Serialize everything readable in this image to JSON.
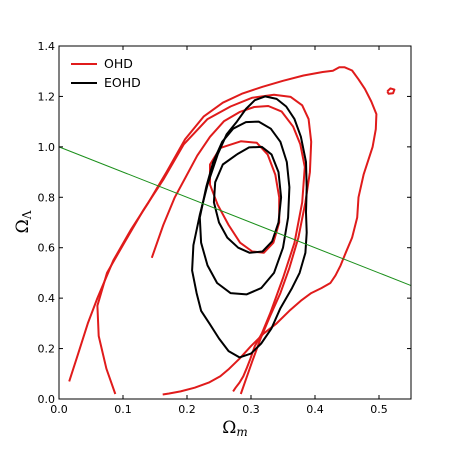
{
  "chart_data": {
    "type": "contour",
    "xlabel": "Ω_m",
    "ylabel": "Ω_Λ",
    "xlim": [
      0.0,
      0.55
    ],
    "ylim": [
      0.0,
      1.4
    ],
    "x_ticks": [
      "0.0",
      "0.1",
      "0.2",
      "0.3",
      "0.4",
      "0.5"
    ],
    "y_ticks": [
      "0.0",
      "0.2",
      "0.4",
      "0.6",
      "0.8",
      "1.0",
      "1.2",
      "1.4"
    ],
    "legend_position": "top-left",
    "grid": false,
    "series": [
      {
        "name": "OHD",
        "color": "#e01b1b",
        "contours": [
          [
            [
              0.252,
              0.996
            ],
            [
              0.284,
              1.022
            ],
            [
              0.309,
              1.016
            ],
            [
              0.326,
              0.97
            ],
            [
              0.338,
              0.89
            ],
            [
              0.344,
              0.8
            ],
            [
              0.344,
              0.7
            ],
            [
              0.335,
              0.62
            ],
            [
              0.32,
              0.58
            ],
            [
              0.302,
              0.585
            ],
            [
              0.283,
              0.62
            ],
            [
              0.265,
              0.69
            ],
            [
              0.248,
              0.77
            ],
            [
              0.236,
              0.85
            ],
            [
              0.236,
              0.93
            ],
            [
              0.252,
              0.996
            ]
          ],
          [
            [
              0.145,
              0.56
            ],
            [
              0.163,
              0.69
            ],
            [
              0.181,
              0.8
            ],
            [
              0.198,
              0.88
            ],
            [
              0.216,
              0.965
            ],
            [
              0.236,
              1.04
            ],
            [
              0.258,
              1.102
            ],
            [
              0.282,
              1.138
            ],
            [
              0.305,
              1.158
            ],
            [
              0.327,
              1.162
            ],
            [
              0.348,
              1.14
            ],
            [
              0.366,
              1.08
            ],
            [
              0.377,
              1.01
            ],
            [
              0.384,
              0.92
            ],
            [
              0.38,
              0.78
            ],
            [
              0.368,
              0.62
            ],
            [
              0.35,
              0.48
            ],
            [
              0.33,
              0.34
            ],
            [
              0.317,
              0.26
            ],
            [
              0.306,
              0.21
            ],
            [
              0.299,
              0.16
            ],
            [
              0.293,
              0.12
            ],
            [
              0.288,
              0.09
            ],
            [
              0.282,
              0.065
            ],
            [
              0.276,
              0.045
            ],
            [
              0.272,
              0.03
            ]
          ],
          [
            [
              0.016,
              0.07
            ],
            [
              0.03,
              0.18
            ],
            [
              0.045,
              0.3
            ],
            [
              0.06,
              0.4
            ],
            [
              0.085,
              0.55
            ],
            [
              0.112,
              0.67
            ],
            [
              0.14,
              0.78
            ],
            [
              0.168,
              0.9
            ],
            [
              0.197,
              1.03
            ],
            [
              0.226,
              1.12
            ],
            [
              0.256,
              1.175
            ],
            [
              0.287,
              1.212
            ],
            [
              0.318,
              1.238
            ],
            [
              0.35,
              1.262
            ],
            [
              0.382,
              1.283
            ],
            [
              0.412,
              1.297
            ],
            [
              0.428,
              1.302
            ],
            [
              0.438,
              1.316
            ],
            [
              0.446,
              1.316
            ],
            [
              0.458,
              1.303
            ],
            [
              0.468,
              1.268
            ],
            [
              0.478,
              1.23
            ],
            [
              0.488,
              1.18
            ],
            [
              0.496,
              1.13
            ],
            [
              0.495,
              1.07
            ],
            [
              0.49,
              1.0
            ],
            [
              0.476,
              0.89
            ],
            [
              0.468,
              0.8
            ],
            [
              0.466,
              0.72
            ],
            [
              0.458,
              0.64
            ],
            [
              0.448,
              0.58
            ],
            [
              0.44,
              0.53
            ],
            [
              0.432,
              0.49
            ],
            [
              0.424,
              0.46
            ],
            [
              0.41,
              0.44
            ],
            [
              0.394,
              0.42
            ],
            [
              0.378,
              0.39
            ],
            [
              0.36,
              0.35
            ],
            [
              0.34,
              0.3
            ],
            [
              0.32,
              0.26
            ],
            [
              0.3,
              0.21
            ],
            [
              0.282,
              0.16
            ],
            [
              0.266,
              0.12
            ],
            [
              0.252,
              0.09
            ],
            [
              0.234,
              0.065
            ],
            [
              0.212,
              0.045
            ],
            [
              0.19,
              0.03
            ],
            [
              0.172,
              0.022
            ],
            [
              0.162,
              0.018
            ]
          ],
          [
            [
              0.088,
              0.02
            ],
            [
              0.074,
              0.12
            ],
            [
              0.062,
              0.25
            ],
            [
              0.06,
              0.37
            ],
            [
              0.075,
              0.5
            ],
            [
              0.102,
              0.62
            ],
            [
              0.132,
              0.75
            ],
            [
              0.163,
              0.87
            ],
            [
              0.195,
              1.01
            ],
            [
              0.232,
              1.11
            ],
            [
              0.268,
              1.16
            ],
            [
              0.302,
              1.195
            ],
            [
              0.336,
              1.207
            ],
            [
              0.362,
              1.198
            ],
            [
              0.38,
              1.165
            ],
            [
              0.39,
              1.11
            ],
            [
              0.394,
              1.02
            ],
            [
              0.392,
              0.9
            ],
            [
              0.385,
              0.78
            ],
            [
              0.374,
              0.64
            ],
            [
              0.36,
              0.52
            ],
            [
              0.346,
              0.42
            ],
            [
              0.33,
              0.33
            ],
            [
              0.315,
              0.24
            ],
            [
              0.302,
              0.15
            ],
            [
              0.291,
              0.07
            ],
            [
              0.284,
              0.02
            ]
          ],
          [
            [
              0.513,
              1.22
            ],
            [
              0.518,
              1.232
            ],
            [
              0.524,
              1.227
            ],
            [
              0.522,
              1.213
            ],
            [
              0.515,
              1.211
            ],
            [
              0.513,
              1.22
            ]
          ]
        ]
      },
      {
        "name": "EOHD",
        "color": "#000000",
        "contours": [
          [
            [
              0.278,
              0.97
            ],
            [
              0.297,
              0.998
            ],
            [
              0.317,
              1.0
            ],
            [
              0.332,
              0.97
            ],
            [
              0.343,
              0.9
            ],
            [
              0.347,
              0.8
            ],
            [
              0.343,
              0.7
            ],
            [
              0.333,
              0.625
            ],
            [
              0.318,
              0.585
            ],
            [
              0.298,
              0.58
            ],
            [
              0.28,
              0.6
            ],
            [
              0.263,
              0.64
            ],
            [
              0.25,
              0.7
            ],
            [
              0.242,
              0.78
            ],
            [
              0.244,
              0.86
            ],
            [
              0.256,
              0.93
            ],
            [
              0.278,
              0.97
            ]
          ],
          [
            [
              0.23,
              0.84
            ],
            [
              0.241,
              0.94
            ],
            [
              0.255,
              1.02
            ],
            [
              0.272,
              1.072
            ],
            [
              0.292,
              1.098
            ],
            [
              0.312,
              1.1
            ],
            [
              0.331,
              1.072
            ],
            [
              0.346,
              1.02
            ],
            [
              0.356,
              0.94
            ],
            [
              0.36,
              0.84
            ],
            [
              0.358,
              0.72
            ],
            [
              0.35,
              0.6
            ],
            [
              0.336,
              0.5
            ],
            [
              0.316,
              0.44
            ],
            [
              0.293,
              0.415
            ],
            [
              0.268,
              0.42
            ],
            [
              0.247,
              0.46
            ],
            [
              0.232,
              0.53
            ],
            [
              0.222,
              0.62
            ],
            [
              0.22,
              0.72
            ],
            [
              0.23,
              0.84
            ]
          ],
          [
            [
              0.232,
              0.85
            ],
            [
              0.22,
              0.73
            ],
            [
              0.21,
              0.61
            ],
            [
              0.208,
              0.51
            ],
            [
              0.215,
              0.42
            ],
            [
              0.222,
              0.35
            ],
            [
              0.235,
              0.3
            ],
            [
              0.25,
              0.24
            ],
            [
              0.265,
              0.19
            ],
            [
              0.282,
              0.165
            ],
            [
              0.3,
              0.18
            ],
            [
              0.316,
              0.22
            ],
            [
              0.332,
              0.28
            ],
            [
              0.346,
              0.36
            ],
            [
              0.364,
              0.44
            ],
            [
              0.376,
              0.5
            ],
            [
              0.385,
              0.58
            ],
            [
              0.387,
              0.66
            ],
            [
              0.386,
              0.74
            ],
            [
              0.387,
              0.84
            ],
            [
              0.386,
              0.94
            ],
            [
              0.378,
              1.04
            ],
            [
              0.368,
              1.11
            ],
            [
              0.355,
              1.16
            ],
            [
              0.34,
              1.19
            ],
            [
              0.322,
              1.2
            ],
            [
              0.306,
              1.185
            ],
            [
              0.292,
              1.15
            ],
            [
              0.278,
              1.1
            ],
            [
              0.262,
              1.05
            ],
            [
              0.248,
              0.97
            ],
            [
              0.232,
              0.85
            ]
          ]
        ]
      }
    ],
    "reference_line": {
      "color": "#1a8f1a",
      "points": [
        [
          0.0,
          1.0
        ],
        [
          0.55,
          0.45
        ]
      ]
    }
  }
}
